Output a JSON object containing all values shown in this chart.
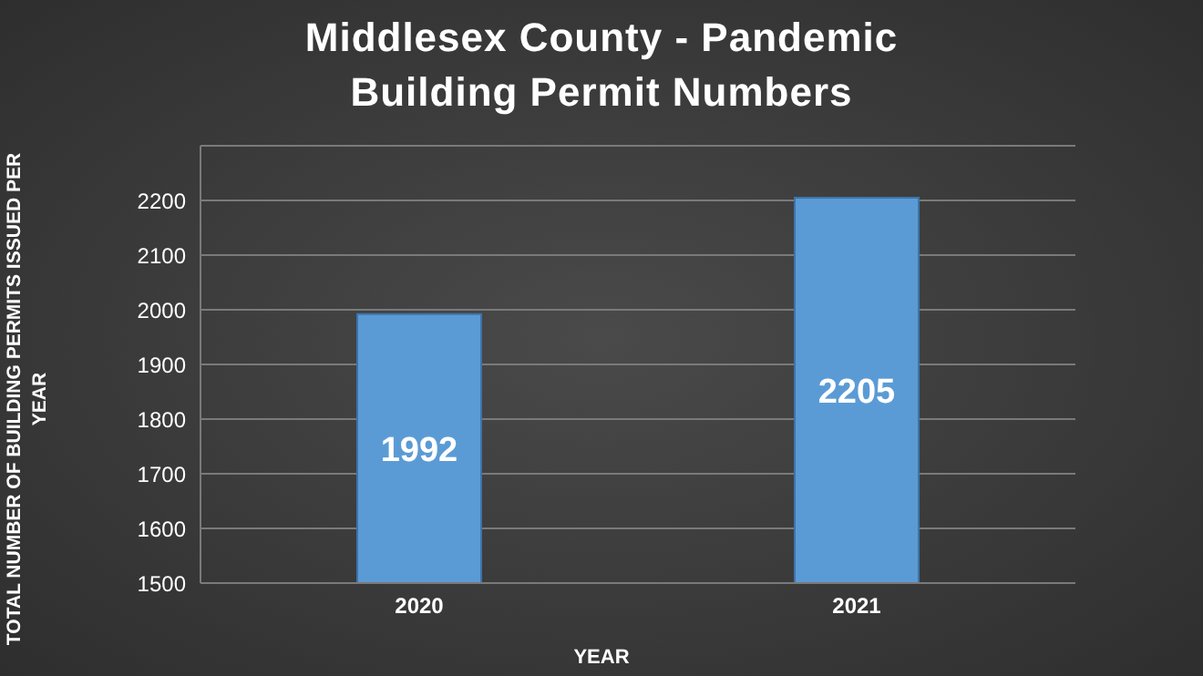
{
  "chart_data": {
    "type": "bar",
    "title": "Middlesex County - Pandemic Building Permit Numbers",
    "xlabel": "YEAR",
    "ylabel": "TOTAL NUMBER OF BUILDING PERMITS ISSUED PER YEAR",
    "categories": [
      "2020",
      "2021"
    ],
    "values": [
      1992,
      2205
    ],
    "color": "#5b9bd5",
    "ylim": [
      1500,
      2300
    ],
    "yticks": [
      1500,
      1600,
      1700,
      1800,
      1900,
      2000,
      2100,
      2200
    ],
    "grid": "y",
    "data_labels": true
  }
}
